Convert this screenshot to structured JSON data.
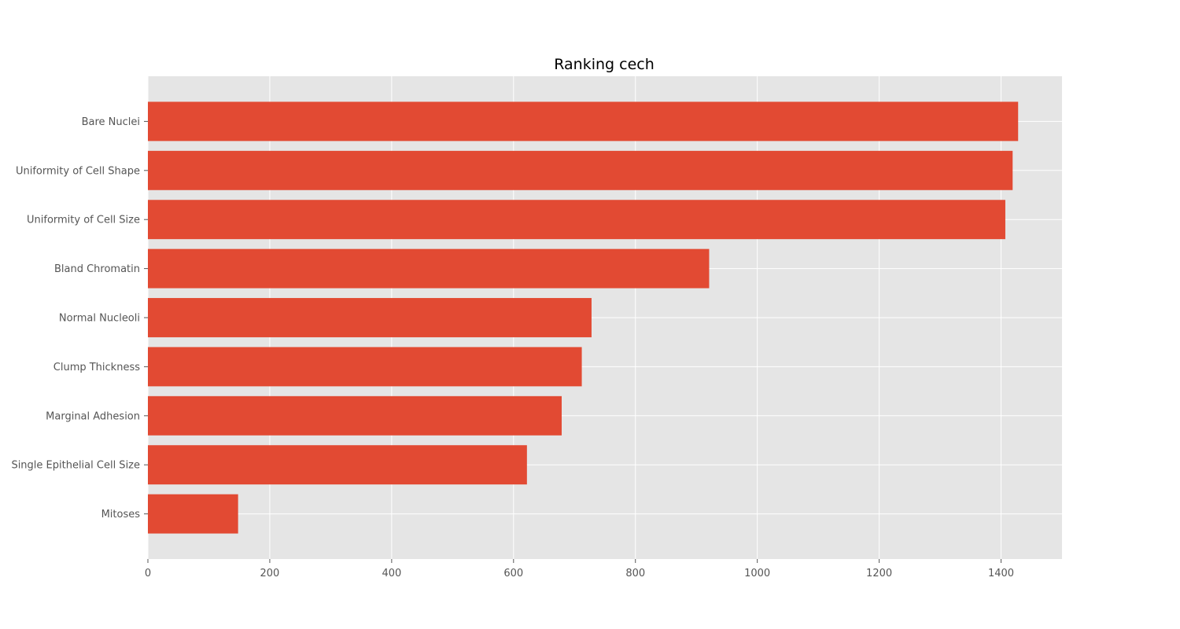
{
  "chart_data": {
    "type": "bar",
    "orientation": "horizontal",
    "title": "Ranking cech",
    "xlabel": "",
    "ylabel": "",
    "categories": [
      "Bare Nuclei",
      "Uniformity of Cell Shape",
      "Uniformity of Cell Size",
      "Bland Chromatin",
      "Normal Nucleoli",
      "Clump Thickness",
      "Marginal Adhesion",
      "Single Epithelial Cell Size",
      "Mitoses"
    ],
    "values": [
      1428,
      1419,
      1407,
      921,
      728,
      712,
      679,
      622,
      148
    ],
    "xlim": [
      0,
      1500
    ],
    "xticks": [
      0,
      200,
      400,
      600,
      800,
      1000,
      1200,
      1400
    ],
    "grid": true,
    "legend": "none",
    "colors": {
      "bar": "#e24a33",
      "plot_background": "#e5e5e5",
      "grid": "#ffffff",
      "tick_label": "#555555",
      "title": "#000000"
    }
  }
}
